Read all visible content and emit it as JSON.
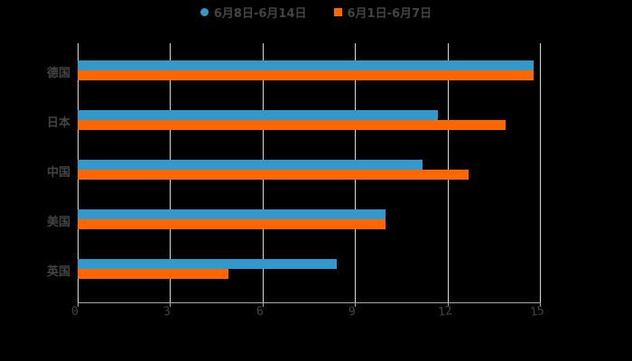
{
  "chart_data": {
    "type": "bar",
    "orientation": "horizontal",
    "title": "",
    "categories": [
      "德国",
      "日本",
      "中国",
      "美国",
      "英国"
    ],
    "series": [
      {
        "name": "6月8日-6月14日",
        "color": "#3399CC",
        "values": [
          14.8,
          11.7,
          11.2,
          10.0,
          8.4
        ]
      },
      {
        "name": "6月1日-6月7日",
        "color": "#FF6600",
        "values": [
          14.8,
          13.9,
          12.7,
          10.0,
          4.9
        ]
      }
    ],
    "xlabel": "",
    "ylabel": "",
    "xlim": [
      0,
      15
    ],
    "xticks": [
      "0",
      "3",
      "6",
      "9",
      "12",
      "15"
    ],
    "grid": true,
    "legend_position": "top",
    "background": "#000000"
  },
  "legend": {
    "items": [
      {
        "label": "6月8日-6月14日",
        "color": "#3399CC",
        "shape": "circle"
      },
      {
        "label": "6月1日-6月7日",
        "color": "#FF6600",
        "shape": "square"
      }
    ]
  }
}
